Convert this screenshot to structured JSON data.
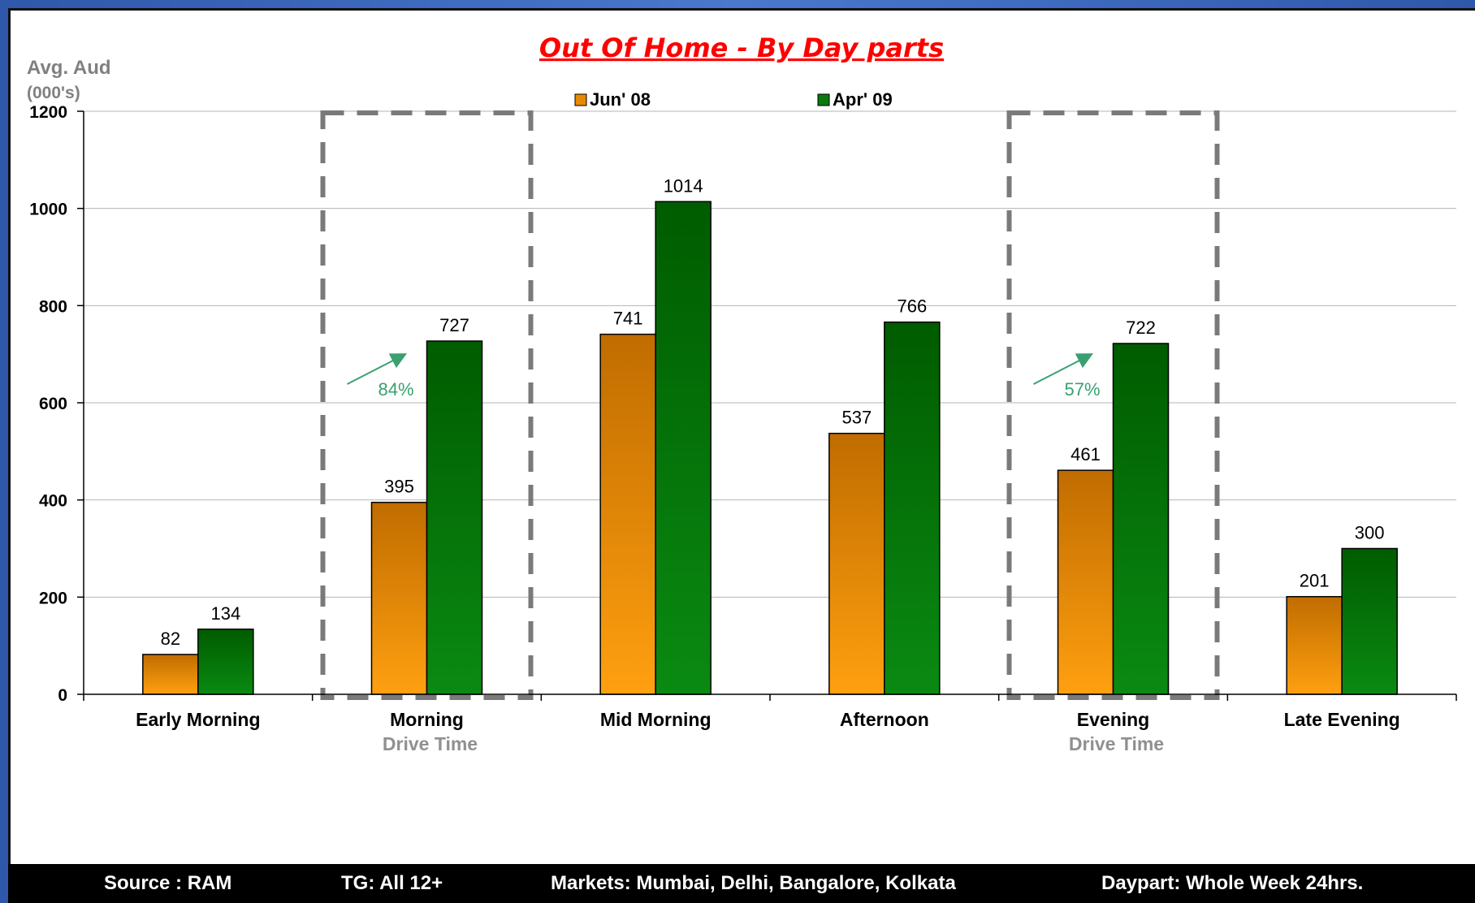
{
  "footer": {
    "source": "Source : RAM",
    "tg": "TG: All 12+",
    "markets": "Markets: Mumbai, Delhi, Bangalore, Kolkata",
    "daypart": "Daypart: Whole Week 24hrs."
  },
  "annotations": {
    "drive_time_label": "Drive Time",
    "morning_growth": "84%",
    "evening_growth": "57%"
  },
  "colors": {
    "jun08": "#e88a00",
    "apr09": "#0a7a10",
    "title": "#ff0000",
    "annotation": "#3aa070"
  },
  "chart_data": {
    "type": "bar",
    "title": "Out Of Home - By Day parts",
    "ylabel": "Avg. Aud (000's)",
    "xlabel": "",
    "ylim": [
      0,
      1200
    ],
    "yticks": [
      0,
      200,
      400,
      600,
      800,
      1000,
      1200
    ],
    "grid": true,
    "legend_position": "top",
    "categories": [
      "Early Morning",
      "Morning",
      "Mid Morning",
      "Afternoon",
      "Evening",
      "Late Evening"
    ],
    "series": [
      {
        "name": "Jun' 08",
        "values": [
          82,
          395,
          741,
          537,
          461,
          201
        ]
      },
      {
        "name": "Apr' 09",
        "values": [
          134,
          727,
          1014,
          766,
          722,
          300
        ]
      }
    ]
  }
}
